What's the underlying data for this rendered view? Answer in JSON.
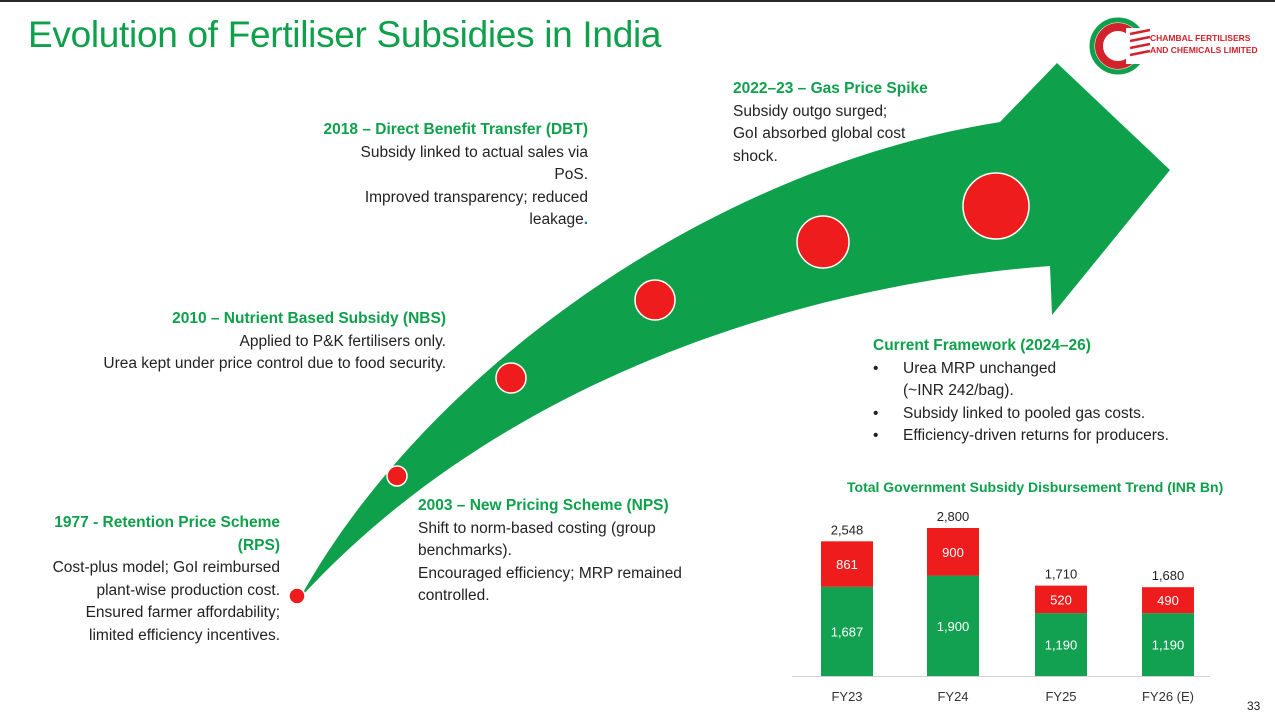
{
  "title": "Evolution of Fertiliser Subsidies in India",
  "logo": {
    "line1": "CHAMBAL FERTILISERS",
    "line2": "AND CHEMICALS LIMITED"
  },
  "milestones": {
    "rps": {
      "heading1": "1977 - Retention Price Scheme",
      "heading2": "(RPS)",
      "lines": [
        "Cost-plus model; GoI reimbursed",
        "plant-wise production cost.",
        "Ensured farmer affordability;",
        "limited efficiency incentives."
      ]
    },
    "nps": {
      "heading": "2003 – New Pricing Scheme (NPS)",
      "lines": [
        "Shift to norm-based costing (group",
        "benchmarks).",
        "Encouraged efficiency; MRP remained",
        "controlled."
      ]
    },
    "nbs": {
      "heading": "2010 – Nutrient Based Subsidy (NBS)",
      "lines": [
        "Applied to P&K fertilisers only.",
        "Urea kept under price control due to food security."
      ]
    },
    "dbt": {
      "heading": "2018 – Direct Benefit Transfer (DBT)",
      "lines": [
        "Subsidy linked to actual sales via",
        "PoS.",
        "Improved transparency; reduced",
        "leakage",
        "."
      ]
    },
    "gas": {
      "heading": "2022–23 – Gas Price Spike",
      "lines": [
        "Subsidy outgo surged;",
        "GoI absorbed global cost",
        "shock."
      ]
    },
    "current": {
      "heading": "Current Framework (2024–26)",
      "bullet": "•",
      "lines": [
        "Urea MRP unchanged",
        "(~INR 242/bag).",
        "Subsidy linked to pooled gas costs.",
        "Efficiency-driven returns for producers."
      ]
    }
  },
  "chart_data": {
    "type": "bar",
    "stacked": true,
    "title": "Total Government Subsidy Disbursement Trend (INR Bn)",
    "categories": [
      "FY23",
      "FY24",
      "FY25",
      "FY26 (E)"
    ],
    "series": [
      {
        "name": "Bottom segment",
        "color": "#12a150",
        "values": [
          1687,
          1900,
          1190,
          1190
        ],
        "labels": [
          "1,687",
          "1,900",
          "1,190",
          "1,190"
        ]
      },
      {
        "name": "Top segment",
        "color": "#ee1c1c",
        "values": [
          861,
          900,
          520,
          490
        ],
        "labels": [
          "861",
          "900",
          "520",
          "490"
        ]
      }
    ],
    "totals": [
      "2,548",
      "2,800",
      "1,710",
      "1,680"
    ],
    "ylim": [
      0,
      2800
    ]
  },
  "colors": {
    "green": "#0ea04b",
    "red": "#ee1c1c",
    "arrow": "#0ea04b"
  },
  "page_number": "33"
}
